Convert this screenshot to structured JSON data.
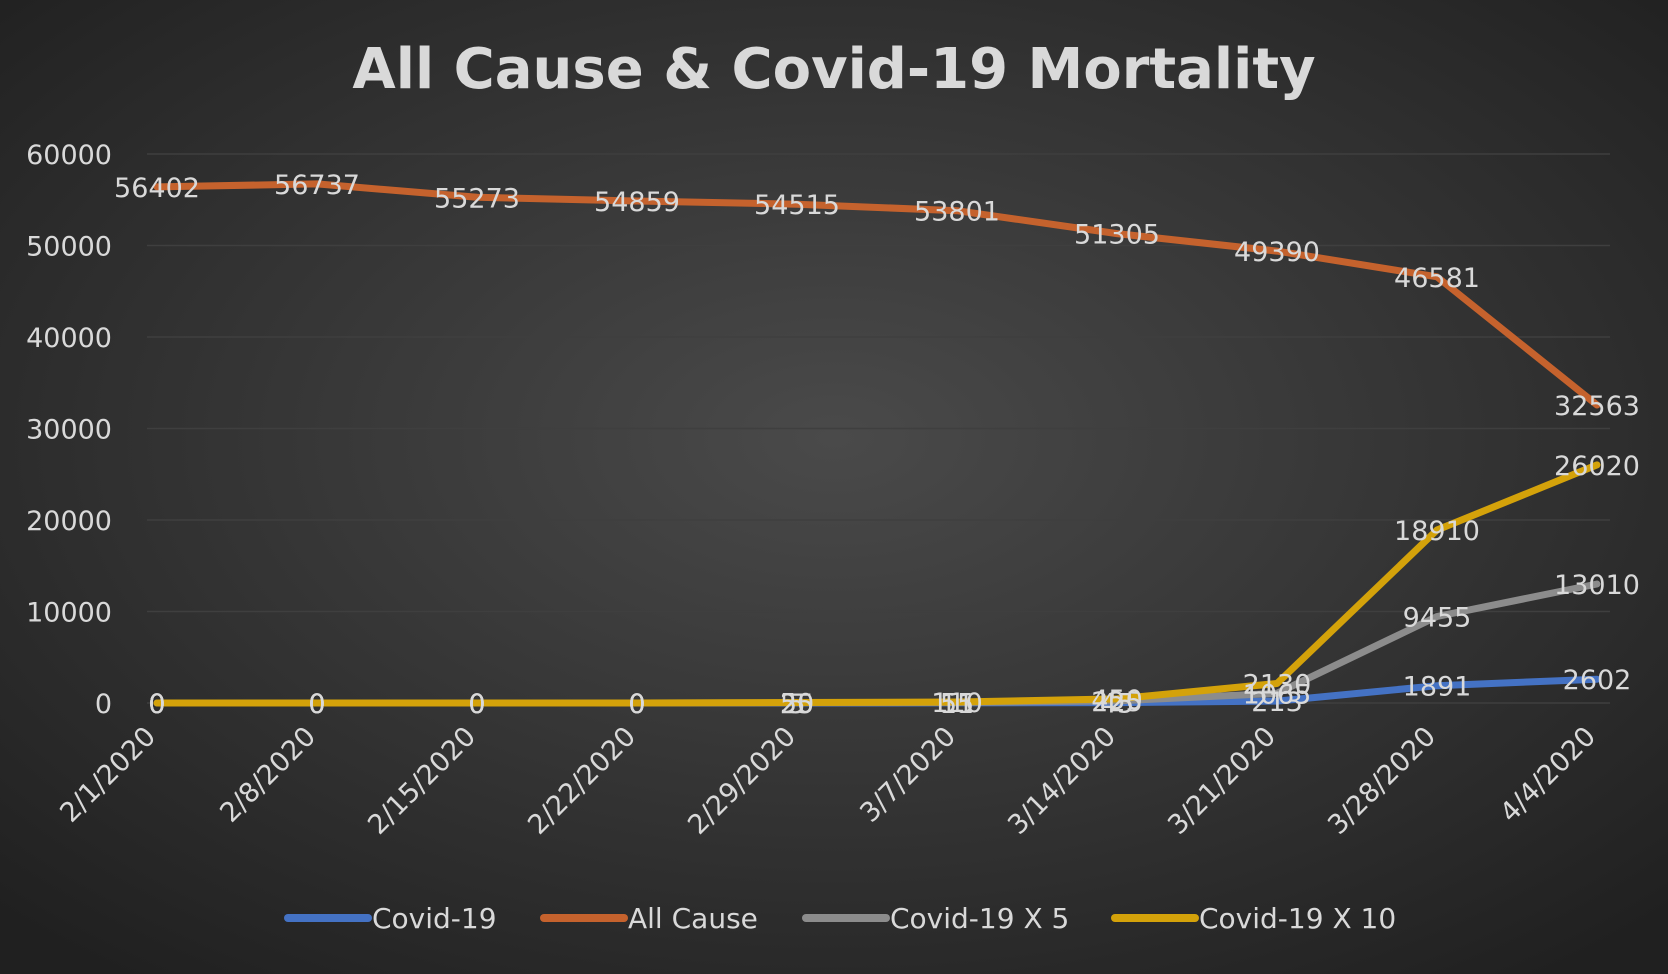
{
  "chart_data": {
    "type": "line",
    "title": "All Cause & Covid-19 Mortality",
    "xlabel": "",
    "ylabel": "",
    "ylim": [
      0,
      60000
    ],
    "yticks": [
      0,
      10000,
      20000,
      30000,
      40000,
      50000,
      60000
    ],
    "grid": true,
    "legend_position": "bottom",
    "categories": [
      "2/1/2020",
      "2/8/2020",
      "2/15/2020",
      "2/22/2020",
      "2/29/2020",
      "3/7/2020",
      "3/14/2020",
      "3/21/2020",
      "3/28/2020",
      "4/4/2020"
    ],
    "series": [
      {
        "name": "Covid-19",
        "color": "#4472c4",
        "values": [
          0,
          0,
          0,
          0,
          5,
          11,
          45,
          213,
          1891,
          2602
        ]
      },
      {
        "name": "All Cause",
        "color": "#c5622d",
        "values": [
          56402,
          56737,
          55273,
          54859,
          54515,
          53801,
          51305,
          49390,
          46581,
          32563
        ]
      },
      {
        "name": "Covid-19 X 5",
        "color": "#8c8c8c",
        "values": [
          0,
          0,
          0,
          0,
          25,
          55,
          225,
          1065,
          9455,
          13010
        ]
      },
      {
        "name": "Covid-19 X 10",
        "color": "#d4a20a",
        "values": [
          0,
          0,
          0,
          0,
          50,
          110,
          450,
          2130,
          18910,
          26020
        ]
      }
    ]
  }
}
